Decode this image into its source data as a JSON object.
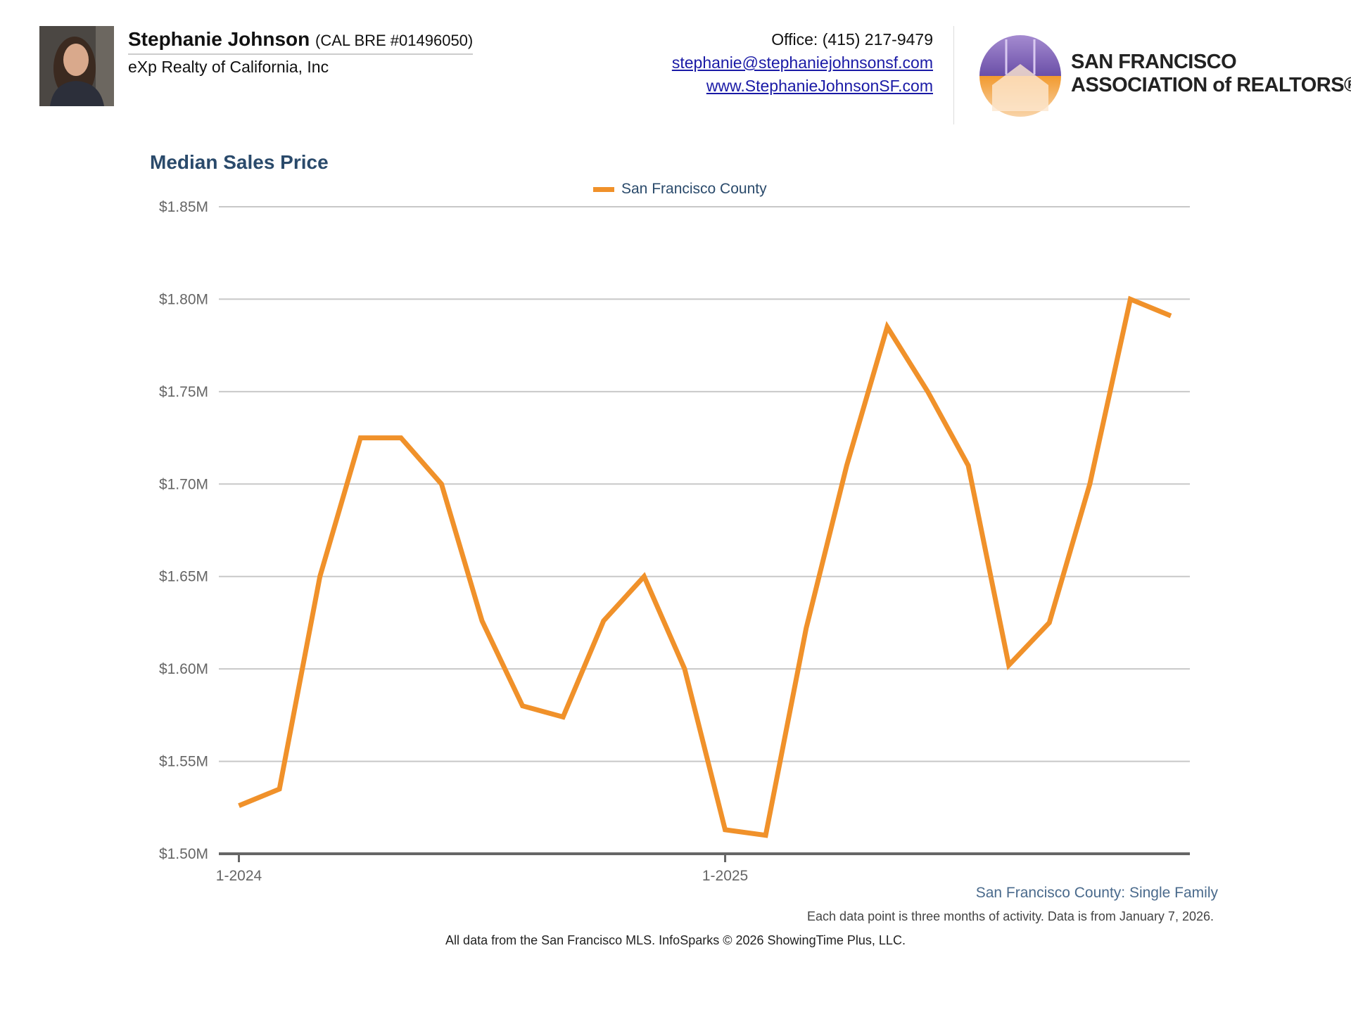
{
  "header": {
    "agent_name": "Stephanie Johnson",
    "license": "(CAL BRE #01496050)",
    "company": "eXp Realty of California, Inc",
    "office": "Office: (415) 217-9479",
    "email": "stephanie@stephaniejohnsonsf.com",
    "website": "www.StephanieJohnsonSF.com",
    "logo_line1": "SAN FRANCISCO",
    "logo_line2": "ASSOCIATION of REALTORS®"
  },
  "footer": {
    "subtitle": "San Francisco County: Single Family",
    "note": "Each data point is three months of activity. Data is from January 7, 2026.",
    "credit": "All data from the San Francisco MLS. InfoSparks © 2026 ShowingTime Plus, LLC."
  },
  "chart_data": {
    "type": "line",
    "title": "Median Sales Price",
    "xlabel": "",
    "ylabel": "",
    "legend": "top-center",
    "grid": true,
    "ylim": [
      1.5,
      1.85
    ],
    "yticks": [
      1.5,
      1.55,
      1.6,
      1.65,
      1.7,
      1.75,
      1.8,
      1.85
    ],
    "ytick_labels": [
      "$1.50M",
      "$1.55M",
      "$1.60M",
      "$1.65M",
      "$1.70M",
      "$1.75M",
      "$1.80M",
      "$1.85M"
    ],
    "xtick_labels": [
      {
        "index": 0,
        "label": "1-2024"
      },
      {
        "index": 12,
        "label": "1-2025"
      }
    ],
    "x": [
      "1-2024",
      "2-2024",
      "3-2024",
      "4-2024",
      "5-2024",
      "6-2024",
      "7-2024",
      "8-2024",
      "9-2024",
      "10-2024",
      "11-2024",
      "12-2024",
      "1-2025",
      "2-2025",
      "3-2025",
      "4-2025",
      "5-2025",
      "6-2025",
      "7-2025",
      "8-2025",
      "9-2025",
      "10-2025",
      "11-2025",
      "12-2025"
    ],
    "series": [
      {
        "name": "San Francisco County",
        "color": "#f0912a",
        "values": [
          1.526,
          1.535,
          1.65,
          1.725,
          1.725,
          1.7,
          1.626,
          1.58,
          1.574,
          1.626,
          1.65,
          1.6,
          1.513,
          1.51,
          1.622,
          1.71,
          1.785,
          1.75,
          1.71,
          1.602,
          1.625,
          1.7,
          1.8,
          1.791
        ]
      }
    ]
  }
}
